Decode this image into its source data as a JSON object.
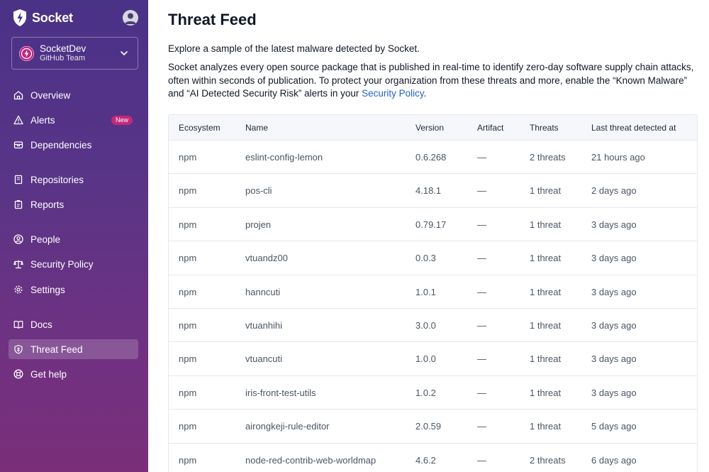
{
  "sidebar": {
    "brand": "Socket",
    "org": {
      "name": "SocketDev",
      "subtitle": "GitHub Team"
    },
    "items": [
      {
        "label": "Overview",
        "icon": "home-icon"
      },
      {
        "label": "Alerts",
        "icon": "warning-icon",
        "badge": "New"
      },
      {
        "label": "Dependencies",
        "icon": "package-icon"
      },
      {
        "label": "Repositories",
        "icon": "book-icon"
      },
      {
        "label": "Reports",
        "icon": "clipboard-icon"
      },
      {
        "label": "People",
        "icon": "person-icon"
      },
      {
        "label": "Security Policy",
        "icon": "scale-icon"
      },
      {
        "label": "Settings",
        "icon": "gear-icon"
      },
      {
        "label": "Docs",
        "icon": "book-open-icon"
      },
      {
        "label": "Threat Feed",
        "icon": "bug-icon",
        "active": true
      },
      {
        "label": "Get help",
        "icon": "lifebuoy-icon"
      }
    ]
  },
  "main": {
    "title": "Threat Feed",
    "intro": "Explore a sample of the latest malware detected by Socket.",
    "para_before_link": "Socket analyzes every open source package that is published in real-time to identify zero-day software supply chain attacks, often within seconds of publication. To protect your organization from these threats and more, enable the “Known Malware” and “AI Detected Security Risk” alerts in your ",
    "para_link": "Security Policy",
    "para_after_link": ".",
    "table": {
      "headers": [
        "Ecosystem",
        "Name",
        "Version",
        "Artifact",
        "Threats",
        "Last threat detected at"
      ],
      "rows": [
        [
          "npm",
          "eslint-config-lemon",
          "0.6.268",
          "—",
          "2 threats",
          "21 hours ago"
        ],
        [
          "npm",
          "pos-cli",
          "4.18.1",
          "—",
          "1 threat",
          "2 days ago"
        ],
        [
          "npm",
          "projen",
          "0.79.17",
          "—",
          "1 threat",
          "3 days ago"
        ],
        [
          "npm",
          "vtuandz00",
          "0.0.3",
          "—",
          "1 threat",
          "3 days ago"
        ],
        [
          "npm",
          "hanncuti",
          "1.0.1",
          "—",
          "1 threat",
          "3 days ago"
        ],
        [
          "npm",
          "vtuanhihi",
          "3.0.0",
          "—",
          "1 threat",
          "3 days ago"
        ],
        [
          "npm",
          "vtuancuti",
          "1.0.0",
          "—",
          "1 threat",
          "3 days ago"
        ],
        [
          "npm",
          "iris-front-test-utils",
          "1.0.2",
          "—",
          "1 threat",
          "3 days ago"
        ],
        [
          "npm",
          "airongkeji-rule-editor",
          "2.0.59",
          "—",
          "1 threat",
          "5 days ago"
        ],
        [
          "npm",
          "node-red-contrib-web-worldmap",
          "4.6.2",
          "—",
          "2 threats",
          "6 days ago"
        ]
      ]
    }
  },
  "colors": {
    "sidebar_top": "#4a3287",
    "sidebar_bottom": "#7a2e7a",
    "link": "#2563c9",
    "badge": "#c2297a"
  }
}
